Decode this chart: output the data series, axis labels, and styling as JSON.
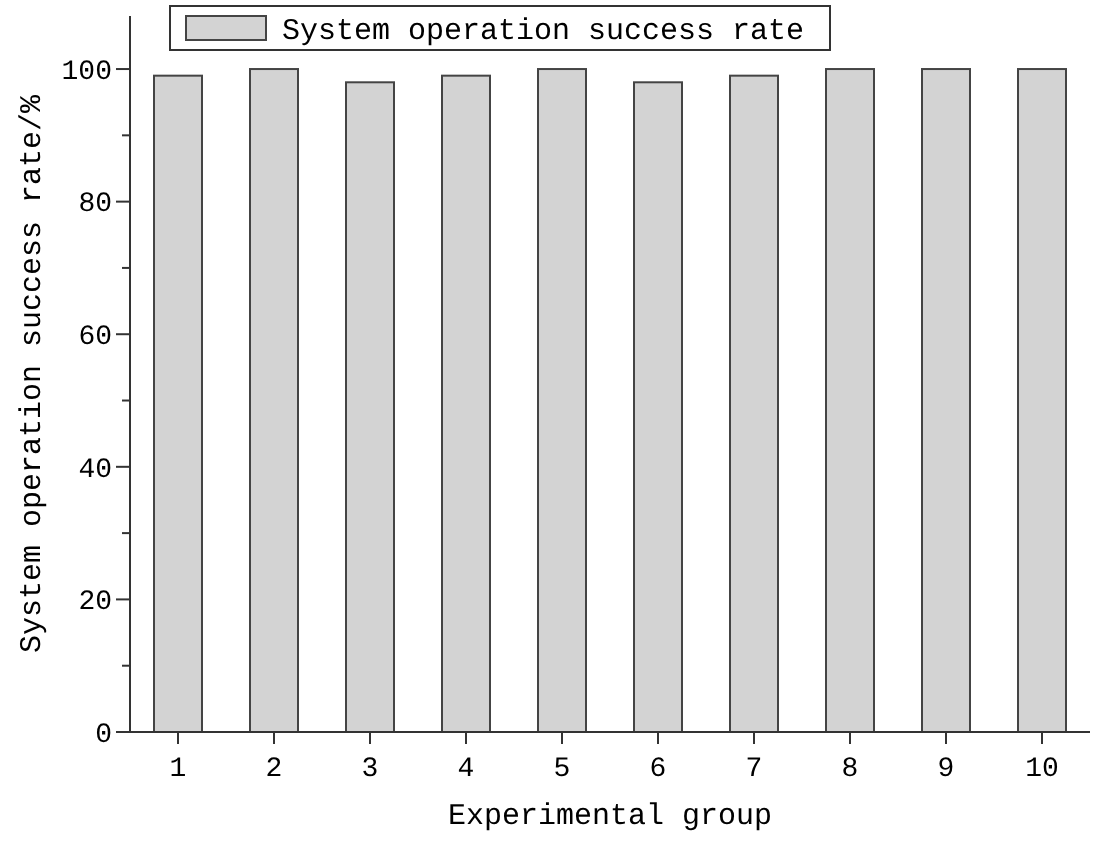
{
  "chart_data": {
    "type": "bar",
    "xlabel": "Experimental group",
    "ylabel": "System operation success rate/%",
    "categories": [
      "1",
      "2",
      "3",
      "4",
      "5",
      "6",
      "7",
      "8",
      "9",
      "10"
    ],
    "series": [
      {
        "name": "System operation success rate",
        "color": "#d3d3d3",
        "values": [
          99,
          100,
          98,
          99,
          100,
          98,
          99,
          100,
          100,
          100
        ]
      }
    ],
    "ylim": [
      0,
      108
    ],
    "yticks": [
      0,
      {
        "value": 10,
        "label": null
      },
      20,
      {
        "value": 30,
        "label": null
      },
      40,
      {
        "value": 50,
        "label": null
      },
      60,
      {
        "value": 70,
        "label": null
      },
      80,
      {
        "value": 90,
        "label": null
      },
      100
    ],
    "grid": false,
    "legend": "top left"
  }
}
